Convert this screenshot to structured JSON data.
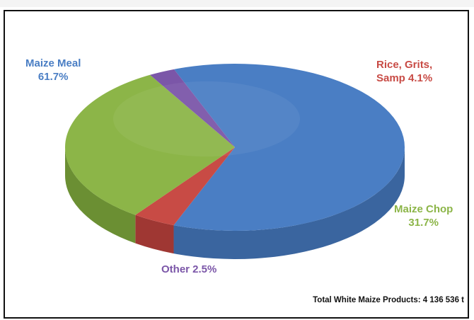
{
  "chart_data": {
    "type": "pie",
    "style": "3d-tilted",
    "slices": [
      {
        "label": "Maize Meal",
        "value": 61.7,
        "display": "61.7%",
        "color": "#4a7ec4",
        "side_color": "#3a659f"
      },
      {
        "label": "Rice, Grits, Samp",
        "value": 4.1,
        "display": "4.1%",
        "color": "#c84b45",
        "side_color": "#9f3733"
      },
      {
        "label": "Maize Chop",
        "value": 31.7,
        "display": "31.7%",
        "color": "#8cb548",
        "side_color": "#6b8f33"
      },
      {
        "label": "Other",
        "value": 2.5,
        "display": "2.5%",
        "color": "#7b56a8",
        "side_color": "#5e3f85"
      }
    ],
    "annotation": "Total White Maize Products: 4 136 536 t"
  },
  "labels": {
    "maize_meal_name": "Maize Meal",
    "maize_meal_pct": "61.7%",
    "rice_name": "Rice, Grits,",
    "rice_pct": "Samp 4.1%",
    "chop_name": "Maize Chop",
    "chop_pct": "31.7%",
    "other": "Other 2.5%"
  }
}
